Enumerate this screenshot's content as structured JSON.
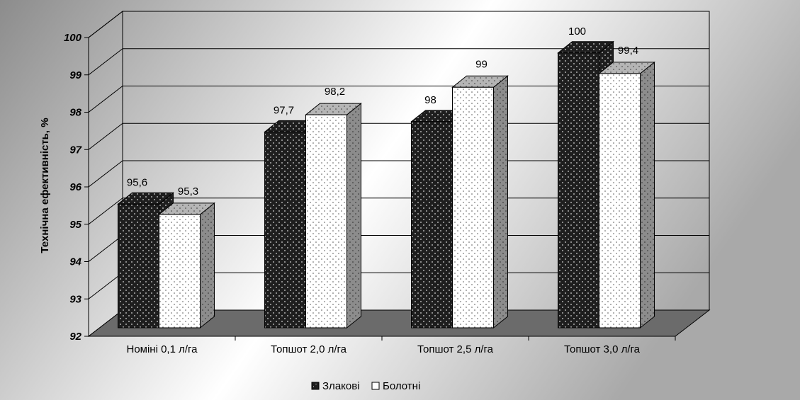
{
  "chart_data": {
    "type": "bar",
    "title": "",
    "xlabel": "",
    "ylabel": "Технічна ефективність, %",
    "ylim": [
      92,
      100
    ],
    "yticks": [
      "92",
      "93",
      "94",
      "95",
      "96",
      "97",
      "98",
      "99",
      "100"
    ],
    "categories": [
      "Номіні 0,1 л/га",
      "Топшот 2,0 л/га",
      "Топшот 2,5 л/га",
      "Топшот 3,0 л/га"
    ],
    "series": [
      {
        "name": "Злакові",
        "values": [
          95.6,
          97.7,
          98,
          100
        ],
        "labels": [
          "95,6",
          "97,7",
          "98",
          "100"
        ],
        "color": "#1e1e1e"
      },
      {
        "name": "Болотні",
        "values": [
          95.3,
          98.2,
          99,
          99.4
        ],
        "labels": [
          "95,3",
          "98,2",
          "99",
          "99,4"
        ],
        "color": "#ffffff"
      }
    ],
    "grid": true,
    "legend_position": "bottom",
    "style": "3d-clustered"
  }
}
